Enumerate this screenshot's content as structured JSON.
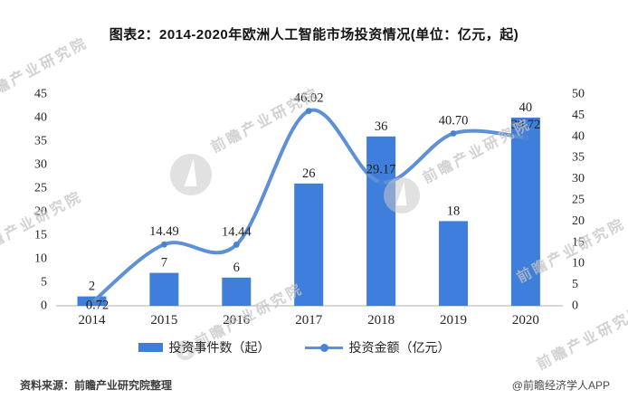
{
  "title": "图表2：2014-2020年欧洲人工智能市场投资情况(单位：亿元，起)",
  "chart_data": {
    "type": "bar+line combo",
    "categories": [
      "2014",
      "2015",
      "2016",
      "2017",
      "2018",
      "2019",
      "2020"
    ],
    "series": [
      {
        "name": "投资事件数（起）",
        "type": "bar",
        "axis": "left",
        "values": [
          2,
          7,
          6,
          26,
          36,
          18,
          40
        ],
        "labels": [
          "2",
          "7",
          "6",
          "26",
          "36",
          "18",
          "40"
        ]
      },
      {
        "name": "投资金额（亿元）",
        "type": "line",
        "axis": "right",
        "values": [
          0.72,
          14.49,
          14.44,
          46.02,
          29.17,
          40.7,
          39.72
        ],
        "labels": [
          "0.72",
          "14.49",
          "14.44",
          "46.02",
          "29.17",
          "40.70",
          "39.72"
        ]
      }
    ],
    "left_axis": {
      "min": 0,
      "max": 45,
      "step": 5
    },
    "right_axis": {
      "min": 0,
      "max": 50,
      "step": 5
    },
    "grid": false,
    "legend_position": "bottom",
    "smooth_line": true
  },
  "watermark": {
    "text": "前瞻产业研究院"
  },
  "footer": {
    "source": "资料来源：前瞻产业研究院整理",
    "credit": "@前瞻经济学人APP"
  },
  "colors": {
    "bar": "#3f7fdb",
    "line": "#5e90d8",
    "marker": "#4a82d4",
    "axis_line": "#bfbfbf",
    "tick_label": "#262626",
    "data_label": "#1f1f1f"
  }
}
